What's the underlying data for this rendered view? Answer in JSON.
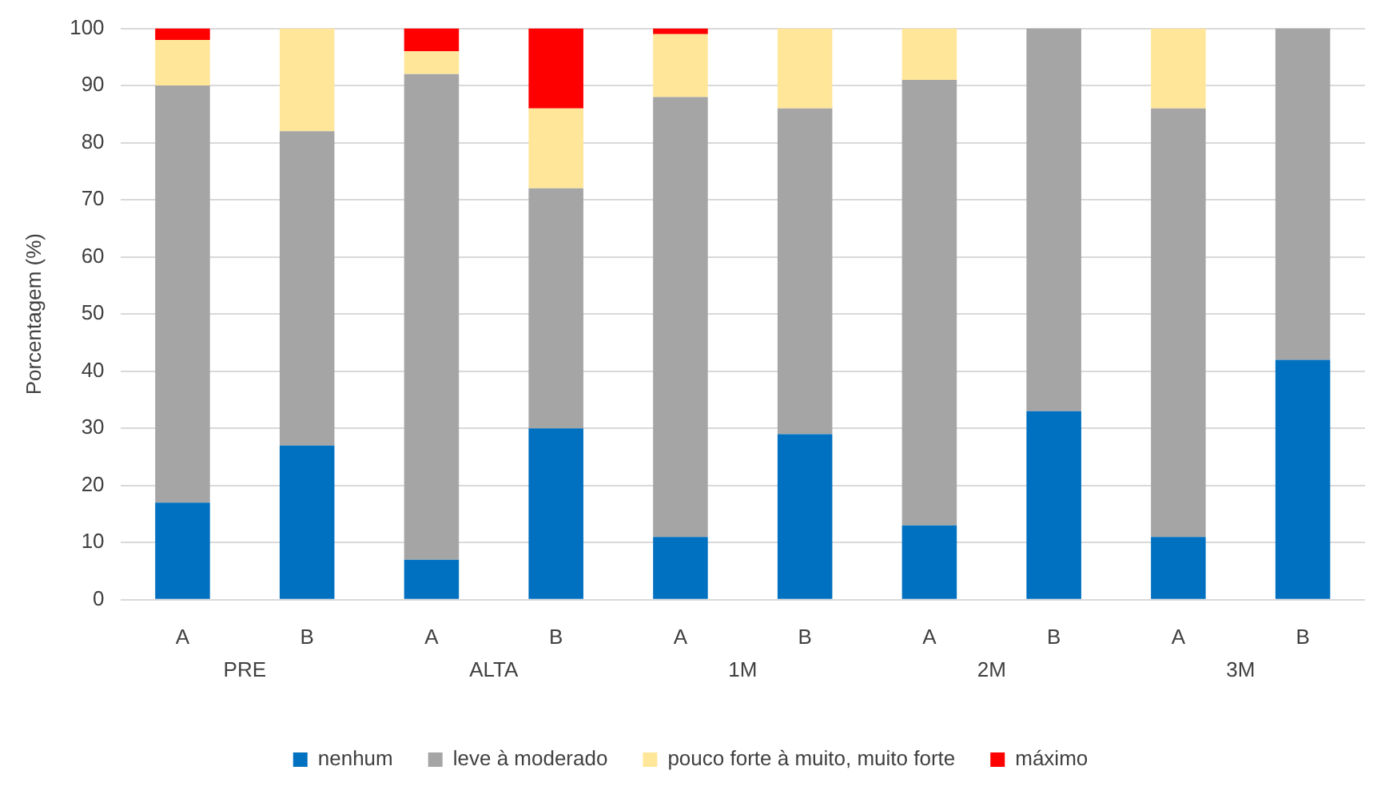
{
  "chart_data": {
    "type": "bar",
    "stacked": true,
    "ylabel": "Porcentagem (%)",
    "categories": [
      "A",
      "B",
      "A",
      "B",
      "A",
      "B",
      "A",
      "B",
      "A",
      "B"
    ],
    "series": [
      {
        "name": "nenhum",
        "color": "#0070c0",
        "values": [
          17,
          27,
          7,
          30,
          11,
          29,
          13,
          33,
          11,
          42
        ]
      },
      {
        "name": "leve à moderado",
        "color": "#a5a5a5",
        "values": [
          73,
          55,
          85,
          42,
          77,
          57,
          78,
          67,
          75,
          58
        ]
      },
      {
        "name": "pouco forte à muito, muito forte",
        "color": "#ffe699",
        "values": [
          8,
          18,
          4,
          14,
          11,
          14,
          9,
          0,
          14,
          0
        ]
      },
      {
        "name": "máximo",
        "color": "#ff0000",
        "values": [
          2,
          0,
          4,
          14,
          1,
          0,
          0,
          0,
          0,
          0
        ]
      }
    ],
    "ylim": [
      0,
      100
    ],
    "yticks": [
      0,
      10,
      20,
      30,
      40,
      50,
      60,
      70,
      80,
      90,
      100
    ],
    "grid": "y",
    "legend": "bottom",
    "annotations": [
      "PRE",
      "ALTA",
      "1M",
      "2M",
      "3M"
    ]
  }
}
